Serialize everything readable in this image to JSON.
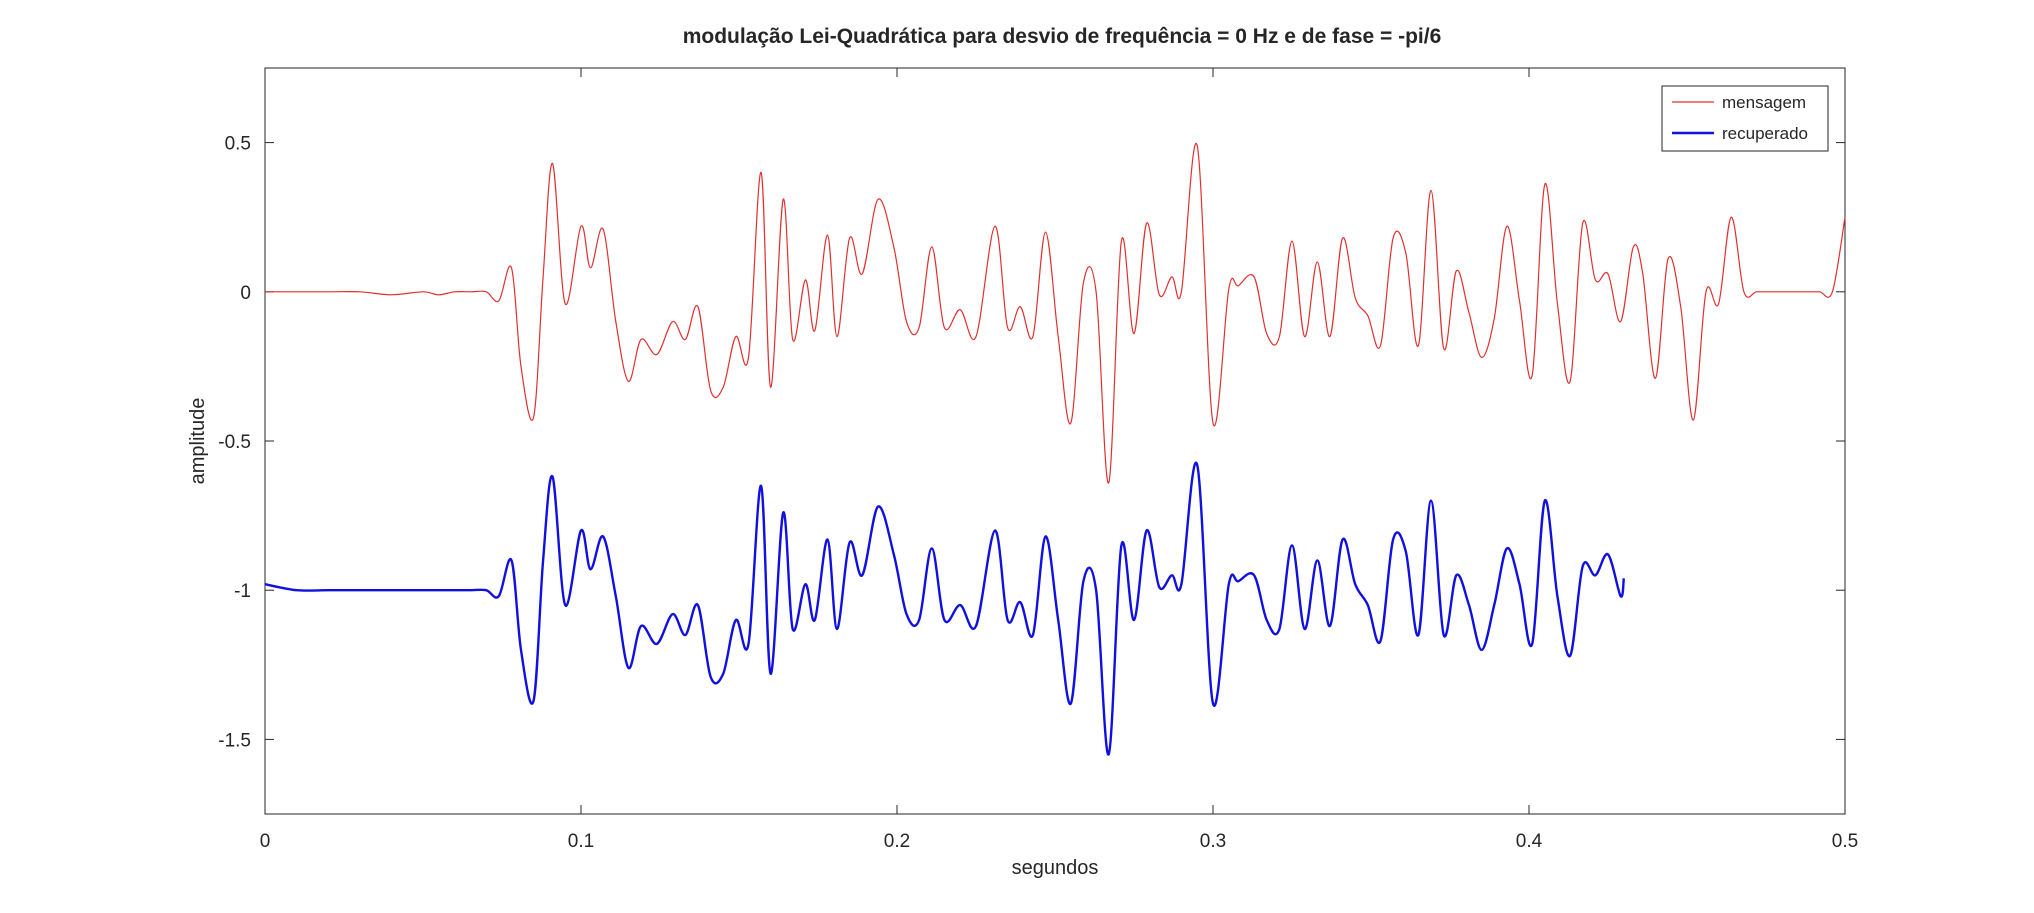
{
  "chart_data": {
    "type": "line",
    "title": "modulação Lei-Quadrática para desvio de frequência = 0 Hz e de fase = -pi/6",
    "xlabel": "segundos",
    "ylabel": "amplitude",
    "xlim": [
      0,
      0.5
    ],
    "ylim": [
      -1.75,
      0.75
    ],
    "xticks": [
      0,
      0.1,
      0.2,
      0.3,
      0.4,
      0.5
    ],
    "xtick_labels": [
      "0",
      "0.1",
      "0.2",
      "0.3",
      "0.4",
      "0.5"
    ],
    "yticks": [
      0.5,
      0,
      -0.5,
      -1,
      -1.5
    ],
    "ytick_labels": [
      "0.5",
      "0",
      "-0.5",
      "-1",
      "-1.5"
    ],
    "grid": false,
    "legend_position": "top-right",
    "series": [
      {
        "name": "mensagem",
        "color": "#e03030",
        "x": [
          0.0,
          0.01,
          0.02,
          0.03,
          0.04,
          0.05,
          0.055,
          0.06,
          0.065,
          0.07,
          0.074,
          0.078,
          0.081,
          0.085,
          0.088,
          0.091,
          0.095,
          0.1,
          0.103,
          0.107,
          0.111,
          0.115,
          0.119,
          0.124,
          0.129,
          0.133,
          0.137,
          0.141,
          0.145,
          0.149,
          0.153,
          0.157,
          0.16,
          0.164,
          0.167,
          0.171,
          0.174,
          0.178,
          0.181,
          0.185,
          0.189,
          0.194,
          0.199,
          0.203,
          0.207,
          0.211,
          0.215,
          0.22,
          0.225,
          0.231,
          0.235,
          0.239,
          0.243,
          0.247,
          0.251,
          0.255,
          0.259,
          0.263,
          0.267,
          0.271,
          0.275,
          0.279,
          0.283,
          0.287,
          0.29,
          0.295,
          0.3,
          0.305,
          0.308,
          0.313,
          0.317,
          0.321,
          0.325,
          0.329,
          0.333,
          0.337,
          0.341,
          0.345,
          0.349,
          0.353,
          0.357,
          0.361,
          0.365,
          0.369,
          0.373,
          0.377,
          0.381,
          0.385,
          0.389,
          0.393,
          0.397,
          0.401,
          0.405,
          0.409,
          0.413,
          0.417,
          0.421,
          0.425,
          0.429,
          0.433,
          0.436,
          0.44,
          0.444,
          0.448,
          0.452,
          0.456,
          0.46,
          0.464,
          0.468,
          0.472,
          0.476,
          0.48,
          0.484,
          0.488,
          0.492,
          0.496,
          0.5
        ],
        "y": [
          0.0,
          0.0,
          0.0,
          0.0,
          -0.01,
          0.0,
          -0.01,
          0.0,
          0.0,
          0.0,
          -0.03,
          0.08,
          -0.25,
          -0.42,
          0.05,
          0.43,
          -0.04,
          0.22,
          0.08,
          0.21,
          -0.1,
          -0.3,
          -0.16,
          -0.21,
          -0.1,
          -0.16,
          -0.05,
          -0.33,
          -0.32,
          -0.15,
          -0.22,
          0.4,
          -0.32,
          0.31,
          -0.16,
          0.04,
          -0.13,
          0.19,
          -0.15,
          0.18,
          0.06,
          0.31,
          0.15,
          -0.1,
          -0.12,
          0.15,
          -0.12,
          -0.06,
          -0.15,
          0.22,
          -0.12,
          -0.05,
          -0.15,
          0.2,
          -0.15,
          -0.44,
          0.03,
          0.0,
          -0.64,
          0.17,
          -0.14,
          0.23,
          -0.01,
          0.05,
          0.0,
          0.49,
          -0.44,
          0.01,
          0.02,
          0.05,
          -0.14,
          -0.15,
          0.17,
          -0.15,
          0.1,
          -0.15,
          0.18,
          -0.02,
          -0.08,
          -0.18,
          0.18,
          0.13,
          -0.18,
          0.34,
          -0.19,
          0.07,
          -0.07,
          -0.22,
          -0.09,
          0.22,
          -0.03,
          -0.28,
          0.36,
          -0.04,
          -0.3,
          0.23,
          0.04,
          0.06,
          -0.1,
          0.15,
          0.06,
          -0.29,
          0.11,
          -0.05,
          -0.43,
          0.0,
          -0.04,
          0.25,
          0.0,
          0.0,
          0.0,
          0.0,
          0.0,
          0.0,
          0.0,
          0.0,
          0.25
        ]
      },
      {
        "name": "recuperado",
        "color": "#1010e0",
        "x": [
          0.0,
          0.01,
          0.02,
          0.03,
          0.04,
          0.05,
          0.055,
          0.06,
          0.065,
          0.07,
          0.074,
          0.078,
          0.081,
          0.085,
          0.088,
          0.091,
          0.095,
          0.1,
          0.103,
          0.107,
          0.111,
          0.115,
          0.119,
          0.124,
          0.129,
          0.133,
          0.137,
          0.141,
          0.145,
          0.149,
          0.153,
          0.157,
          0.16,
          0.164,
          0.167,
          0.171,
          0.174,
          0.178,
          0.181,
          0.185,
          0.189,
          0.194,
          0.199,
          0.203,
          0.207,
          0.211,
          0.215,
          0.22,
          0.225,
          0.231,
          0.235,
          0.239,
          0.243,
          0.247,
          0.251,
          0.255,
          0.259,
          0.263,
          0.267,
          0.271,
          0.275,
          0.279,
          0.283,
          0.287,
          0.29,
          0.295,
          0.3,
          0.305,
          0.308,
          0.313,
          0.317,
          0.321,
          0.325,
          0.329,
          0.333,
          0.337,
          0.341,
          0.345,
          0.349,
          0.353,
          0.357,
          0.361,
          0.365,
          0.369,
          0.373,
          0.377,
          0.381,
          0.385,
          0.389,
          0.393,
          0.397,
          0.401,
          0.405,
          0.409,
          0.413,
          0.417,
          0.421,
          0.425,
          0.429,
          0.43
        ],
        "y": [
          -0.98,
          -1.0,
          -1.0,
          -1.0,
          -1.0,
          -1.0,
          -1.0,
          -1.0,
          -1.0,
          -1.0,
          -1.02,
          -0.9,
          -1.2,
          -1.37,
          -0.9,
          -0.62,
          -1.05,
          -0.8,
          -0.93,
          -0.82,
          -1.02,
          -1.26,
          -1.12,
          -1.18,
          -1.08,
          -1.15,
          -1.05,
          -1.29,
          -1.28,
          -1.1,
          -1.18,
          -0.65,
          -1.28,
          -0.74,
          -1.13,
          -0.98,
          -1.1,
          -0.83,
          -1.13,
          -0.84,
          -0.95,
          -0.72,
          -0.88,
          -1.08,
          -1.1,
          -0.86,
          -1.1,
          -1.05,
          -1.12,
          -0.8,
          -1.1,
          -1.04,
          -1.15,
          -0.82,
          -1.1,
          -1.38,
          -0.97,
          -1.0,
          -1.55,
          -0.85,
          -1.1,
          -0.8,
          -0.99,
          -0.95,
          -0.98,
          -0.58,
          -1.38,
          -0.98,
          -0.97,
          -0.95,
          -1.1,
          -1.13,
          -0.85,
          -1.13,
          -0.9,
          -1.12,
          -0.83,
          -0.98,
          -1.05,
          -1.17,
          -0.83,
          -0.87,
          -1.15,
          -0.7,
          -1.15,
          -0.95,
          -1.05,
          -1.2,
          -1.05,
          -0.86,
          -0.98,
          -1.18,
          -0.7,
          -1.02,
          -1.22,
          -0.92,
          -0.95,
          -0.88,
          -1.02,
          -0.96
        ]
      }
    ]
  }
}
